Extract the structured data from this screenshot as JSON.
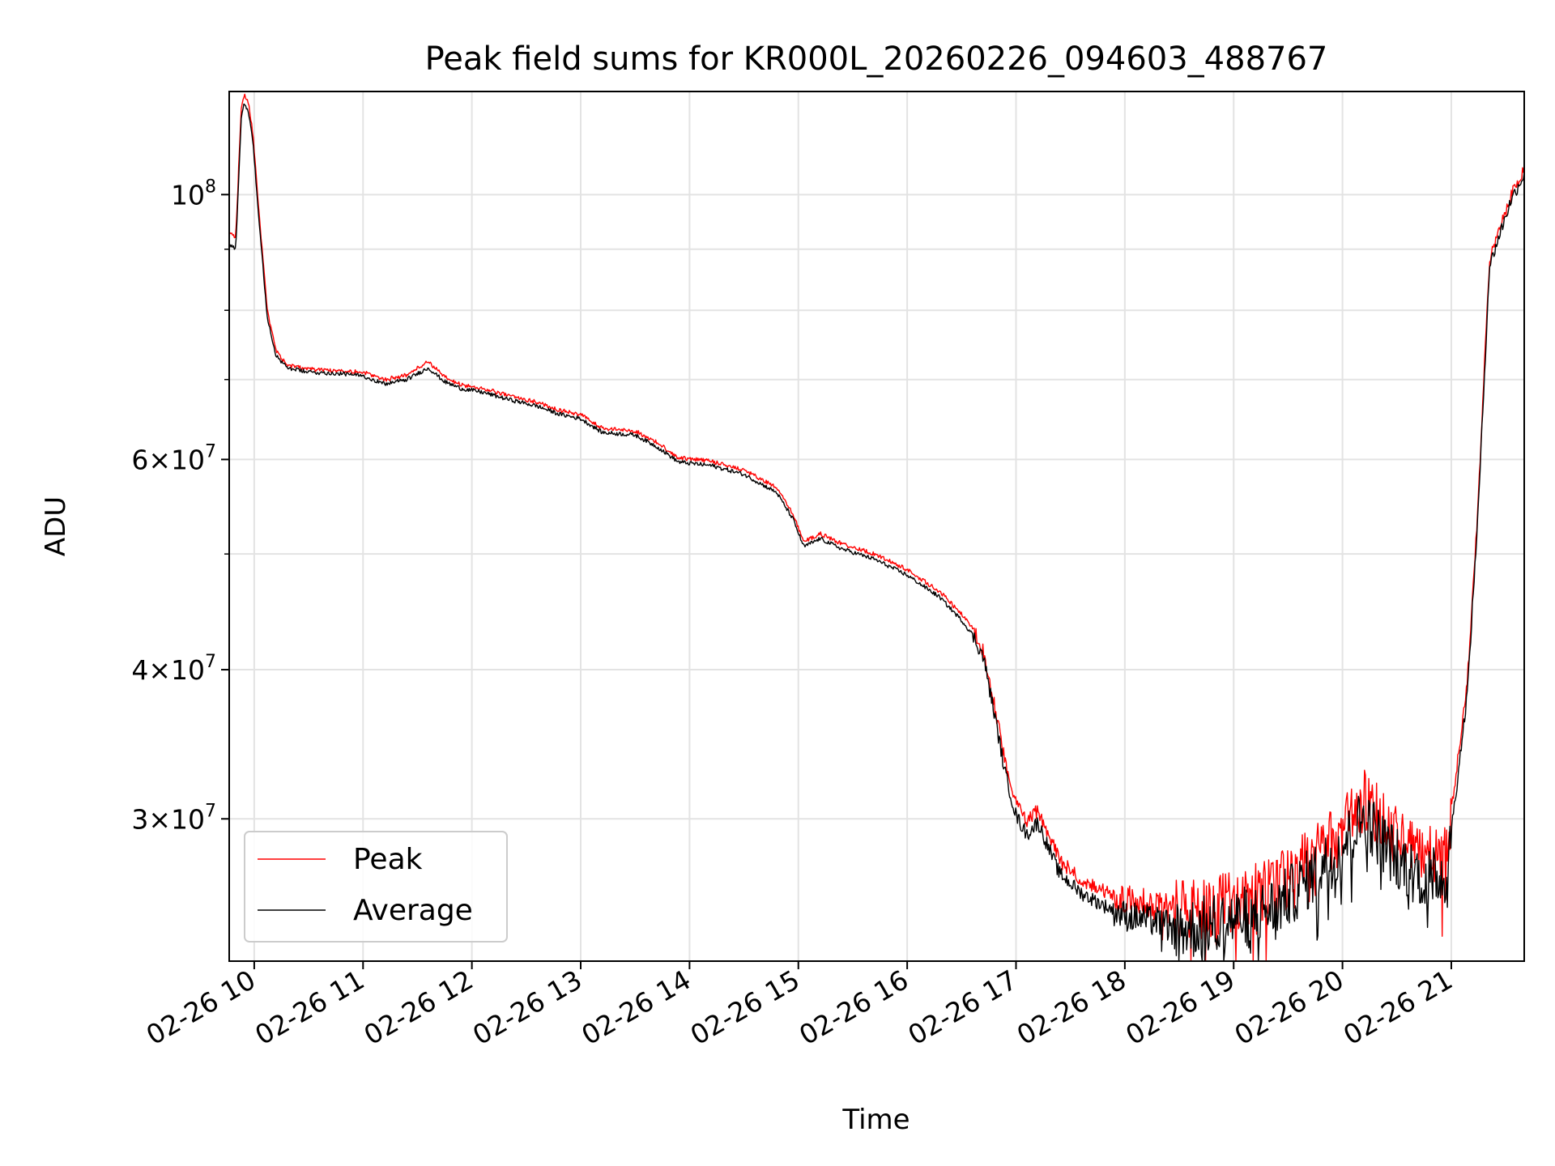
{
  "chart_data": {
    "type": "line",
    "title": "Peak field sums for KR000L_20260226_094603_488767",
    "xlabel": "Time",
    "ylabel": "ADU",
    "yscale": "log",
    "xlim": [
      9.77,
      21.67
    ],
    "ylim": [
      22800000,
      122000000
    ],
    "grid": true,
    "legend_position": "lower-left",
    "x_ticks": [
      {
        "value": 10,
        "label": "02-26 10"
      },
      {
        "value": 11,
        "label": "02-26 11"
      },
      {
        "value": 12,
        "label": "02-26 12"
      },
      {
        "value": 13,
        "label": "02-26 13"
      },
      {
        "value": 14,
        "label": "02-26 14"
      },
      {
        "value": 15,
        "label": "02-26 15"
      },
      {
        "value": 16,
        "label": "02-26 16"
      },
      {
        "value": 17,
        "label": "02-26 17"
      },
      {
        "value": 18,
        "label": "02-26 18"
      },
      {
        "value": 19,
        "label": "02-26 19"
      },
      {
        "value": 20,
        "label": "02-26 20"
      },
      {
        "value": 21,
        "label": "02-26 21"
      }
    ],
    "y_ticks": [
      {
        "value": 30000000,
        "mantissa": "3",
        "exponent": "7"
      },
      {
        "value": 40000000,
        "mantissa": "4",
        "exponent": "7"
      },
      {
        "value": 60000000,
        "mantissa": "6",
        "exponent": "7"
      },
      {
        "value": 100000000,
        "mantissa": "",
        "exponent": "8"
      }
    ],
    "y_minor_gridlines": [
      50000000,
      70000000,
      80000000,
      90000000
    ],
    "series": [
      {
        "name": "Peak",
        "color": "#ff0000",
        "x": [
          9.77,
          9.83,
          9.88,
          9.91,
          9.95,
          9.99,
          10.05,
          10.12,
          10.2,
          10.3,
          10.5,
          10.8,
          11.0,
          11.2,
          11.4,
          11.6,
          11.75,
          11.9,
          12.1,
          12.3,
          12.6,
          12.8,
          13.0,
          13.2,
          13.5,
          13.7,
          13.9,
          14.2,
          14.5,
          14.8,
          14.95,
          15.05,
          15.2,
          15.4,
          15.7,
          16.0,
          16.3,
          16.5,
          16.6,
          16.7,
          16.8,
          16.9,
          17.0,
          17.1,
          17.2,
          17.4,
          17.6,
          17.8,
          18.0,
          18.3,
          18.6,
          18.9,
          19.2,
          19.4,
          19.6,
          19.8,
          20.0,
          20.2,
          20.4,
          20.6,
          20.8,
          20.95,
          21.05,
          21.15,
          21.25,
          21.35,
          21.45,
          21.55,
          21.67
        ],
        "y": [
          93000000,
          92000000,
          118000000,
          121500000,
          119000000,
          112000000,
          95000000,
          80000000,
          74000000,
          72000000,
          71400000,
          71200000,
          71000000,
          70000000,
          70600000,
          72500000,
          70300000,
          69300000,
          68800000,
          68000000,
          67000000,
          66000000,
          65400000,
          63700000,
          63400000,
          62000000,
          60200000,
          59800000,
          58800000,
          56800000,
          54000000,
          51200000,
          52000000,
          51000000,
          50000000,
          48500000,
          46500000,
          44500000,
          43300000,
          41500000,
          37500000,
          33500000,
          31000000,
          29800000,
          30500000,
          27700000,
          26700000,
          26100000,
          25700000,
          25400000,
          25200000,
          25500000,
          26000000,
          26400000,
          27300000,
          28300000,
          29500000,
          31200000,
          29700000,
          28500000,
          28000000,
          28100000,
          33000000,
          39500000,
          56000000,
          88000000,
          94000000,
          100000000,
          105000000
        ]
      },
      {
        "name": "Average",
        "color": "#000000",
        "x": [
          9.77,
          9.83,
          9.88,
          9.91,
          9.95,
          9.99,
          10.05,
          10.12,
          10.2,
          10.3,
          10.5,
          10.8,
          11.0,
          11.2,
          11.4,
          11.6,
          11.75,
          11.9,
          12.1,
          12.3,
          12.6,
          12.8,
          13.0,
          13.2,
          13.5,
          13.7,
          13.9,
          14.2,
          14.5,
          14.8,
          14.95,
          15.05,
          15.2,
          15.4,
          15.7,
          16.0,
          16.3,
          16.5,
          16.6,
          16.7,
          16.8,
          16.9,
          17.0,
          17.1,
          17.2,
          17.4,
          17.6,
          17.8,
          18.0,
          18.3,
          18.6,
          18.9,
          19.2,
          19.4,
          19.6,
          19.8,
          20.0,
          20.2,
          20.4,
          20.6,
          20.8,
          20.95,
          21.05,
          21.15,
          21.25,
          21.35,
          21.45,
          21.55,
          21.67
        ],
        "y": [
          91000000,
          90000000,
          116000000,
          119500000,
          117000000,
          110500000,
          93500000,
          79000000,
          73300000,
          71600000,
          71000000,
          70800000,
          70500000,
          69400000,
          70000000,
          71600000,
          69700000,
          68800000,
          68300000,
          67500000,
          66500000,
          65500000,
          64900000,
          63200000,
          62900000,
          61500000,
          59700000,
          59300000,
          58300000,
          56300000,
          53500000,
          50700000,
          51500000,
          50500000,
          49500000,
          48000000,
          46000000,
          44000000,
          42800000,
          41000000,
          36800000,
          32800000,
          30200000,
          29100000,
          29800000,
          27000000,
          26000000,
          25400000,
          24900000,
          24600000,
          24300000,
          24600000,
          25000000,
          25400000,
          26300000,
          27300000,
          28500000,
          30200000,
          28500000,
          27300000,
          26800000,
          27000000,
          32000000,
          38500000,
          55000000,
          87000000,
          93000000,
          99000000,
          104000000
        ]
      }
    ]
  }
}
